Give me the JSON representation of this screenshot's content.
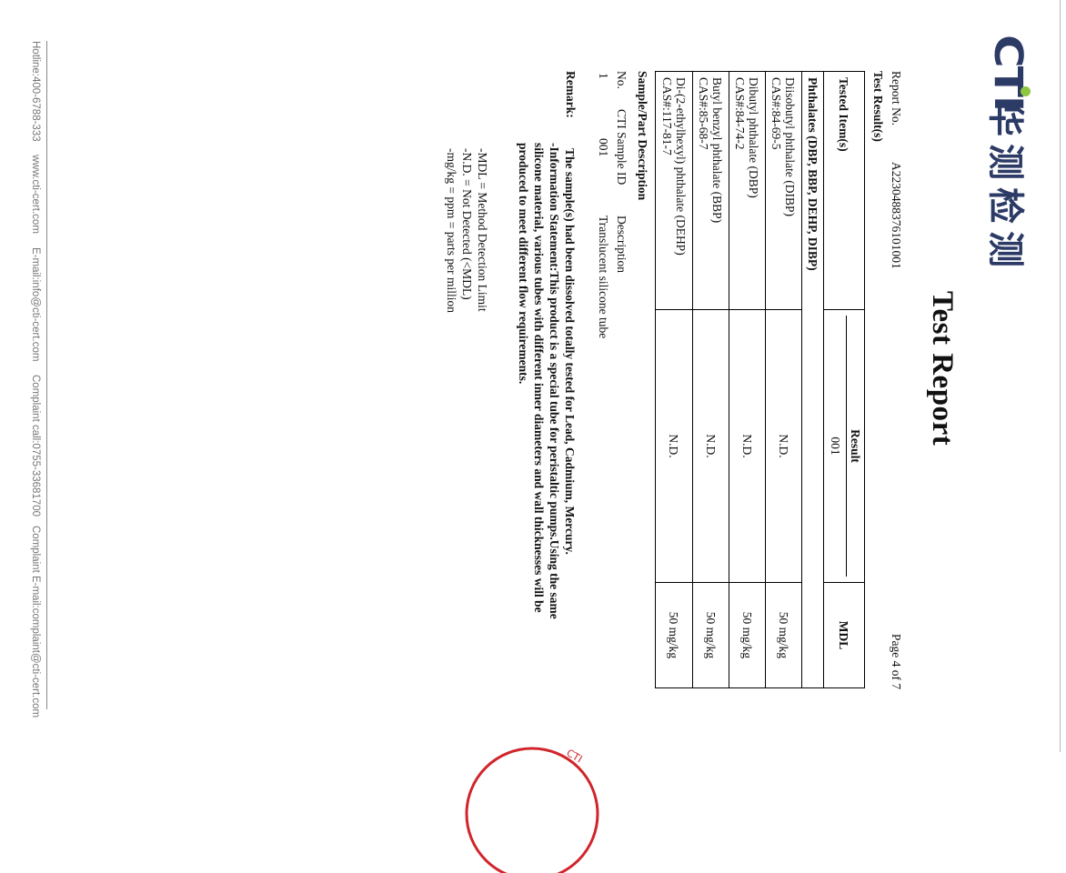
{
  "logo": {
    "latin": "CTI",
    "chinese": "华测检测",
    "brand_color": "#2c3a66",
    "dot_color": "#8dc63f"
  },
  "title": "Test Report",
  "page_indicator": "Page 4 of 7",
  "report_no_label": "Report No.",
  "report_no": "A2230488376101001",
  "test_results_heading": "Test Result(s)",
  "table": {
    "headers": {
      "tested_items": "Tested Item(s)",
      "result": "Result",
      "sample": "001",
      "mdl": "MDL"
    },
    "group": "Phthalates (DBP, BBP, DEHP, DIBP)",
    "rows": [
      {
        "name": "Diisobutyl phthalate (DIBP)",
        "cas": "CAS#:84-69-5",
        "result": "N.D.",
        "mdl": "50 mg/kg"
      },
      {
        "name": "Dibutyl phthalate (DBP)",
        "cas": "CAS#:84-74-2",
        "result": "N.D.",
        "mdl": "50 mg/kg"
      },
      {
        "name": "Butyl benzyl phthalate (BBP)",
        "cas": "CAS#:85-68-7",
        "result": "N.D.",
        "mdl": "50 mg/kg"
      },
      {
        "name": "Di-(2-ethylhexyl) phthalate (DEHP)",
        "cas": "CAS#:117-81-7",
        "result": "N.D.",
        "mdl": "50 mg/kg"
      }
    ]
  },
  "sample": {
    "heading": "Sample/Part Description",
    "headers": {
      "no": "No.",
      "id": "CTI Sample ID",
      "desc": "Description"
    },
    "rows": [
      {
        "no": "1",
        "id": "001",
        "desc": "Translucent silicone tube"
      }
    ]
  },
  "remark": {
    "label": "Remark:",
    "text": "The sample(s) had been dissolved totally tested for Lead, Cadmium, Mercury. -Information Statement:This product is a special tube for peristaltic pumps.Using the same silicone material, various tubes with different inner diameters and wall thicknesses will be produced to meet different flow requirements.",
    "line1": "The sample(s) had been dissolved totally tested for Lead, Cadmium, Mercury.",
    "line2": "-Information Statement:This product is a special tube for peristaltic pumps.Using the same silicone material, various tubes with different inner diameters and wall thicknesses will be produced to meet different flow requirements.",
    "definitions": [
      "-MDL = Method Detection Limit",
      "-N.D. = Not Detected (<MDL)",
      "-mg/kg = ppm = parts per million"
    ]
  },
  "footer": {
    "hotline": "Hotline:400-6788-333",
    "website": "www.cti-cert.com",
    "email": "E-mail:info@cti-cert.com",
    "complaint_call": "Complaint call:0755-33681700",
    "complaint_email": "Complaint E-mail:complaint@cti-cert.com"
  },
  "stamp_color": "#d0252b"
}
